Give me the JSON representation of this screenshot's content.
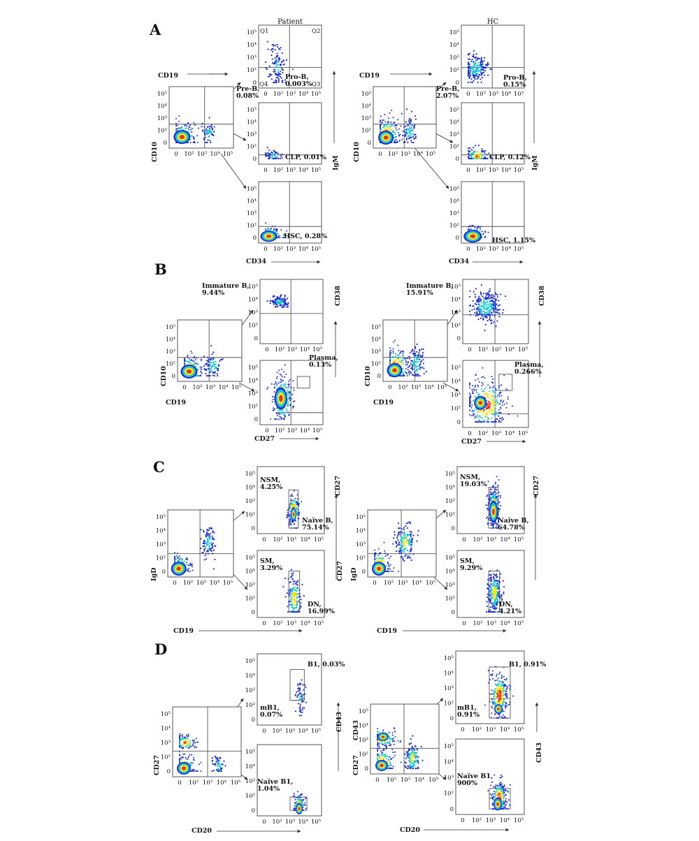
{
  "figure": {
    "panel_letters": [
      "A",
      "B",
      "C",
      "D"
    ],
    "group_titles": [
      "Patient",
      "HC"
    ],
    "tick_labels": [
      "0",
      "10²",
      "10³",
      "10⁴",
      "10⁵"
    ],
    "quadrant_labels": [
      "Q1",
      "Q2",
      "Q3",
      "Q4"
    ]
  },
  "colors": {
    "frame": "#555555",
    "density_low": "#1f2fd6",
    "density_mid": "#19c8d2",
    "density_high": "#f2e51b",
    "density_peak": "#e8321e",
    "background": "#ffffff"
  },
  "chart_data": [
    {
      "panel": "A",
      "group": "Patient",
      "type": "scatter",
      "plots": [
        {
          "id": "parent",
          "xlabel": "CD19",
          "ylabel": "CD10",
          "gates": []
        },
        {
          "id": "pro-b",
          "xlabel": "",
          "ylabel": "",
          "gates": [
            {
              "name": "Pro-B",
              "value": 0.003,
              "label": "Pro-B,\n0.003%"
            },
            {
              "name": "Pre-B",
              "value": 0.08,
              "label": "Pre-B,\n0.08%"
            }
          ],
          "quadrants": [
            "Q1",
            "Q2",
            "Q3",
            "Q4"
          ]
        },
        {
          "id": "clp",
          "xlabel": "",
          "ylabel": "IgM",
          "gates": [
            {
              "name": "CLP",
              "value": 0.01,
              "label": "CLP, 0.01%"
            }
          ]
        },
        {
          "id": "hsc",
          "xlabel": "CD34",
          "ylabel": "",
          "gates": [
            {
              "name": "HSC",
              "value": 0.28,
              "label": "HSC, 0.28%"
            }
          ]
        }
      ]
    },
    {
      "panel": "A",
      "group": "HC",
      "type": "scatter",
      "plots": [
        {
          "id": "parent",
          "xlabel": "",
          "ylabel": "CD10",
          "gates": []
        },
        {
          "id": "pro-b",
          "xlabel": "",
          "ylabel": "",
          "gates": [
            {
              "name": "Pro-B",
              "value": 0.15,
              "label": "Pro-B,\n0.15%"
            },
            {
              "name": "Pre-B",
              "value": 2.07,
              "label": "Pre-B,\n2.07%"
            }
          ]
        },
        {
          "id": "clp",
          "xlabel": "",
          "ylabel": "IgM",
          "gates": [
            {
              "name": "CLP",
              "value": 0.12,
              "label": "CLP, 0.12%"
            }
          ]
        },
        {
          "id": "hsc",
          "xlabel": "CD34",
          "ylabel": "",
          "gates": [
            {
              "name": "HSC",
              "value": 1.15,
              "label": "HSC, 1.15%"
            }
          ]
        }
      ]
    },
    {
      "panel": "B",
      "group": "Patient",
      "type": "scatter",
      "plots": [
        {
          "id": "parent",
          "xlabel": "CD19",
          "ylabel": "CD10",
          "gates": []
        },
        {
          "id": "immature",
          "xlabel": "",
          "ylabel": "CD38",
          "gates": [
            {
              "name": "Immature B",
              "value": 9.44,
              "label": "Immature B,\n9.44%"
            }
          ]
        },
        {
          "id": "plasma",
          "xlabel": "CD27",
          "ylabel": "",
          "gates": [
            {
              "name": "Plasma",
              "value": 0.13,
              "label": "Plasma,\n0.13%"
            }
          ]
        }
      ]
    },
    {
      "panel": "B",
      "group": "HC",
      "type": "scatter",
      "plots": [
        {
          "id": "parent",
          "xlabel": "CD19",
          "ylabel": "CD10",
          "gates": []
        },
        {
          "id": "immature",
          "xlabel": "",
          "ylabel": "CD38",
          "gates": [
            {
              "name": "Immature B",
              "value": 15.91,
              "label": "Immature B,\n15.91%"
            }
          ]
        },
        {
          "id": "plasma",
          "xlabel": "CD27",
          "ylabel": "",
          "gates": [
            {
              "name": "Plasma",
              "value": 0.266,
              "label": "Plasma,\n0.266%"
            }
          ]
        }
      ]
    },
    {
      "panel": "C",
      "group": "Patient",
      "type": "scatter",
      "plots": [
        {
          "id": "parent",
          "xlabel": "CD19",
          "ylabel": "IgD",
          "gates": []
        },
        {
          "id": "top",
          "xlabel": "",
          "ylabel": "CD27",
          "gates": [
            {
              "name": "NSM",
              "value": 4.25,
              "label": "NSM,\n4.25%"
            },
            {
              "name": "Naïve B",
              "value": 75.14,
              "label": "Naïve B,\n75.14%"
            }
          ]
        },
        {
          "id": "bottom",
          "xlabel": "",
          "ylabel": "",
          "gates": [
            {
              "name": "SM",
              "value": 3.29,
              "label": "SM,\n3.29%"
            },
            {
              "name": "DN",
              "value": 16.99,
              "label": "DN,\n16.99%"
            }
          ]
        }
      ]
    },
    {
      "panel": "C",
      "group": "HC",
      "type": "scatter",
      "plots": [
        {
          "id": "parent",
          "xlabel": "CD19",
          "ylabel": "IgD",
          "extra_ylabel": "CD27",
          "gates": []
        },
        {
          "id": "top",
          "xlabel": "",
          "ylabel": "CD27",
          "gates": [
            {
              "name": "NSM",
              "value": 19.03,
              "label": "NSM,\n19.03%"
            },
            {
              "name": "Naïve B",
              "value": 64.78,
              "label": "Naïve B,\n64.78%"
            }
          ]
        },
        {
          "id": "bottom",
          "xlabel": "",
          "ylabel": "",
          "gates": [
            {
              "name": "SM",
              "value": 9.29,
              "label": "SM,\n9.29%"
            },
            {
              "name": "DN",
              "value": 4.21,
              "label": "DN,\n4.21%"
            }
          ]
        }
      ]
    },
    {
      "panel": "D",
      "group": "Patient",
      "type": "scatter",
      "plots": [
        {
          "id": "parent",
          "xlabel": "CD20",
          "ylabel": "CD27",
          "gates": []
        },
        {
          "id": "top",
          "xlabel": "",
          "ylabel": "CD43",
          "gates": [
            {
              "name": "B1",
              "value": 0.03,
              "label": "B1, 0.03%"
            },
            {
              "name": "mB1",
              "value": 0.07,
              "label": "mB1,\n0.07%"
            }
          ]
        },
        {
          "id": "bottom",
          "xlabel": "",
          "ylabel": "",
          "gates": [
            {
              "name": "Naïve B1",
              "value": 1.04,
              "label": "Naïve B1,\n1.04%"
            }
          ]
        }
      ]
    },
    {
      "panel": "D",
      "group": "HC",
      "type": "scatter",
      "plots": [
        {
          "id": "parent",
          "xlabel": "CD20",
          "ylabel": "CD27",
          "gates": []
        },
        {
          "id": "top",
          "xlabel": "",
          "ylabel": "CD43",
          "gates": [
            {
              "name": "B1",
              "value": 0.91,
              "label": "B1, 0.91%"
            },
            {
              "name": "mB1",
              "value": 0.91,
              "label": "mB1,\n0.91%"
            }
          ]
        },
        {
          "id": "bottom",
          "xlabel": "",
          "ylabel": "",
          "gates": [
            {
              "name": "Naïve B1",
              "value": 900,
              "label": "Naïve B1,\n900%"
            }
          ]
        }
      ]
    }
  ]
}
